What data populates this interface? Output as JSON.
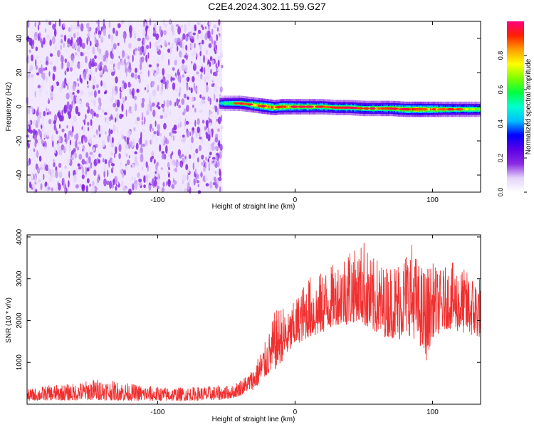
{
  "title": "C2E4.2024.302.11.59.G27",
  "chart_data": [
    {
      "type": "heatmap",
      "xlabel": "Height of straight line (km)",
      "ylabel": "Frequency (Hz)",
      "xlim": [
        -195,
        135
      ],
      "ylim": [
        -50,
        50
      ],
      "xticks": [
        -100,
        0,
        100
      ],
      "yticks": [
        -40,
        -20,
        0,
        20,
        40
      ],
      "colorbar": {
        "label": "Normalized spectral amplitude",
        "range": [
          0,
          1
        ],
        "ticks": [
          0.0,
          0.2,
          0.4,
          0.6,
          0.8
        ],
        "tick_labels": [
          "0.0",
          "0.2",
          "0.4",
          "0.6",
          "0.8"
        ],
        "colormap": [
          "#ffffff",
          "#e4d4fa",
          "#8a2be2",
          "#5a00e6",
          "#0000ff",
          "#00c0ff",
          "#00ffd0",
          "#00ff40",
          "#80ff00",
          "#ffff00",
          "#ffa000",
          "#ff2000",
          "#ff0080"
        ]
      },
      "noise_region": {
        "x_range": [
          -195,
          -53
        ],
        "y_range": [
          -50,
          50
        ],
        "typical_amplitude": 0.08
      },
      "signal_trace": {
        "x": [
          -55,
          -50,
          -45,
          -40,
          -35,
          -30,
          -25,
          -20,
          -15,
          -10,
          -5,
          0,
          10,
          20,
          30,
          40,
          50,
          60,
          70,
          80,
          90,
          100,
          110,
          120,
          130,
          135
        ],
        "frequency": [
          2,
          2,
          2,
          2,
          1.5,
          1,
          0.5,
          0,
          -0.5,
          0,
          0,
          0,
          0,
          0,
          -0.5,
          -0.5,
          -1,
          -1,
          -1,
          -1.5,
          -1.5,
          -1.5,
          -1.5,
          -1.5,
          -1.5,
          -1.5
        ],
        "amplitude": [
          0.45,
          0.55,
          0.6,
          0.65,
          0.7,
          0.75,
          0.8,
          0.85,
          0.8,
          0.82,
          0.8,
          0.78,
          0.75,
          0.72,
          0.7,
          0.72,
          0.7,
          0.72,
          0.75,
          0.8,
          0.85,
          0.78,
          0.72,
          0.7,
          0.68,
          0.65
        ]
      },
      "grid": false
    },
    {
      "type": "line",
      "xlabel": "Height of straight line (km)",
      "ylabel": "SNR (10 * v/v)",
      "xlim": [
        -195,
        135
      ],
      "ylim": [
        0,
        4050
      ],
      "xticks": [
        -100,
        0,
        100
      ],
      "yticks": [
        1000,
        2000,
        3000,
        4000
      ],
      "color": "#f03030",
      "grid": false,
      "envelope": {
        "x": [
          -195,
          -180,
          -160,
          -145,
          -130,
          -110,
          -90,
          -70,
          -55,
          -45,
          -40,
          -35,
          -30,
          -25,
          -20,
          -15,
          -10,
          -5,
          0,
          5,
          10,
          15,
          20,
          25,
          30,
          35,
          40,
          45,
          50,
          55,
          60,
          65,
          70,
          75,
          80,
          85,
          90,
          95,
          100,
          105,
          110,
          115,
          120,
          125,
          130,
          135
        ],
        "low": [
          80,
          90,
          90,
          100,
          90,
          80,
          80,
          90,
          100,
          150,
          200,
          300,
          350,
          500,
          700,
          800,
          1000,
          1200,
          1400,
          1500,
          1600,
          1600,
          1700,
          1800,
          1900,
          1900,
          1900,
          2000,
          1900,
          1700,
          1700,
          1600,
          1600,
          1500,
          1700,
          1600,
          1500,
          1000,
          1600,
          1700,
          1800,
          1800,
          1700,
          1700,
          1600,
          1600
        ],
        "high": [
          350,
          450,
          500,
          620,
          550,
          450,
          400,
          420,
          450,
          450,
          600,
          700,
          900,
          1300,
          1600,
          2200,
          2400,
          2200,
          2500,
          2800,
          3100,
          3000,
          3200,
          3300,
          3400,
          3600,
          3900,
          3600,
          4000,
          3500,
          3500,
          3300,
          3400,
          3500,
          3700,
          3900,
          3400,
          3300,
          3400,
          3200,
          3300,
          3400,
          3300,
          3200,
          3100,
          3100
        ]
      }
    }
  ]
}
